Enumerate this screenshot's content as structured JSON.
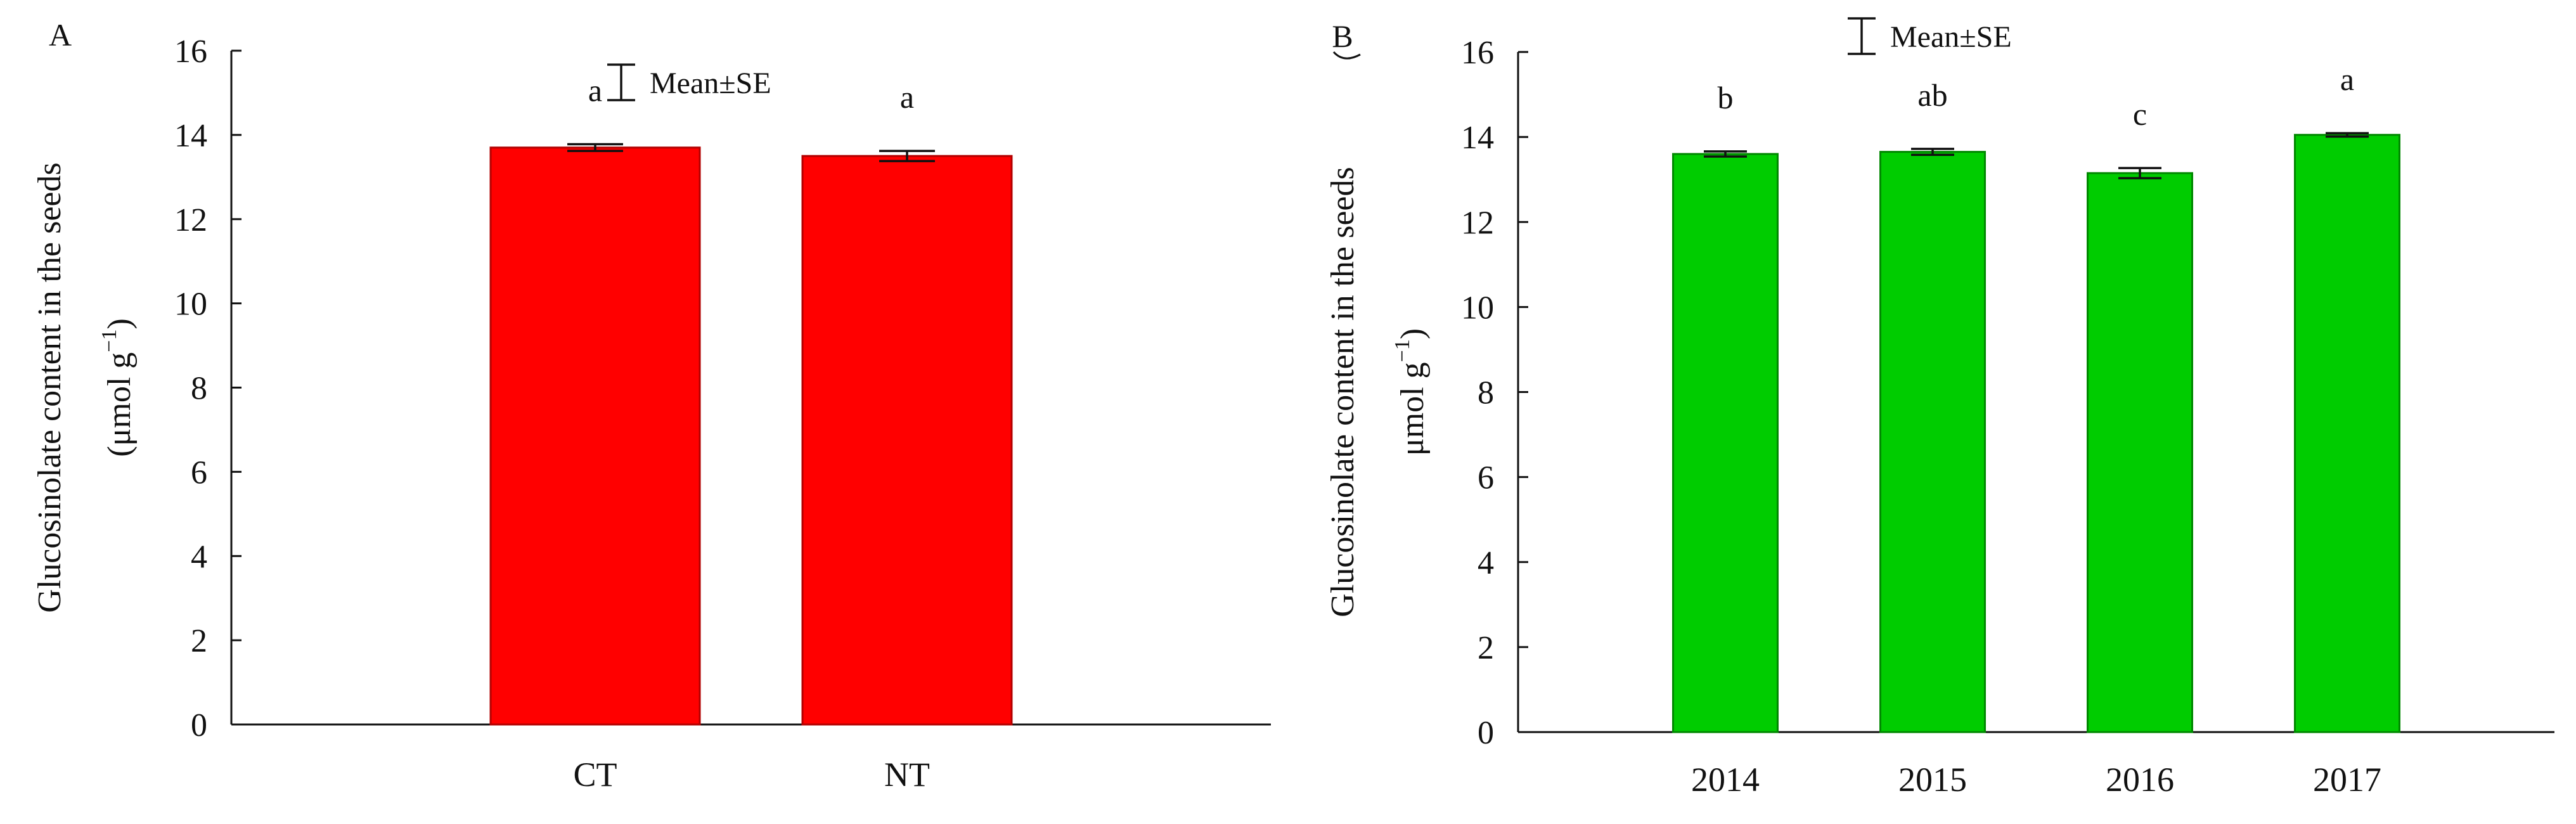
{
  "panels": [
    {
      "panel_label": "A",
      "legend_label": "Mean±SE",
      "ylabel_line1": "Glucosinolate content in the seeds",
      "ylabel_line2_prefix": "(μmol g",
      "ylabel_line2_sup": "−1",
      "ylabel_line2_suffix": ")",
      "bar_color": "#ff0000",
      "bar_stroke": "#b30000"
    },
    {
      "panel_label": "B",
      "legend_label": "Mean±SE",
      "ylabel_line1": "Glucosinolate content in the seeds",
      "ylabel_line2_prefix": "μmol g",
      "ylabel_line2_sup": "−1",
      "ylabel_line2_suffix": ")",
      "bar_color": "#00cc00",
      "bar_stroke": "#008800"
    }
  ],
  "chart_data": [
    {
      "type": "bar",
      "categories": [
        "CT",
        "NT"
      ],
      "values": [
        13.7,
        13.5
      ],
      "errors": [
        0.08,
        0.12
      ],
      "significance": [
        "a",
        "a"
      ],
      "ylim": [
        0,
        16
      ],
      "yticks": [
        0,
        2,
        4,
        6,
        8,
        10,
        12,
        14,
        16
      ],
      "ylabel": "Glucosinolate content in the seeds (μmol g−1)",
      "xlabel": "",
      "grid": false,
      "legend": "Mean±SE"
    },
    {
      "type": "bar",
      "categories": [
        "2014",
        "2015",
        "2016",
        "2017"
      ],
      "values": [
        13.6,
        13.65,
        13.15,
        14.05
      ],
      "errors": [
        0.06,
        0.07,
        0.12,
        0.04
      ],
      "significance": [
        "b",
        "ab",
        "c",
        "a"
      ],
      "ylim": [
        0,
        16
      ],
      "yticks": [
        0,
        2,
        4,
        6,
        8,
        10,
        12,
        14,
        16
      ],
      "ylabel": "Glucosinolate content in the seeds μmol g−1)",
      "xlabel": "",
      "grid": false,
      "legend": "Mean±SE"
    }
  ]
}
